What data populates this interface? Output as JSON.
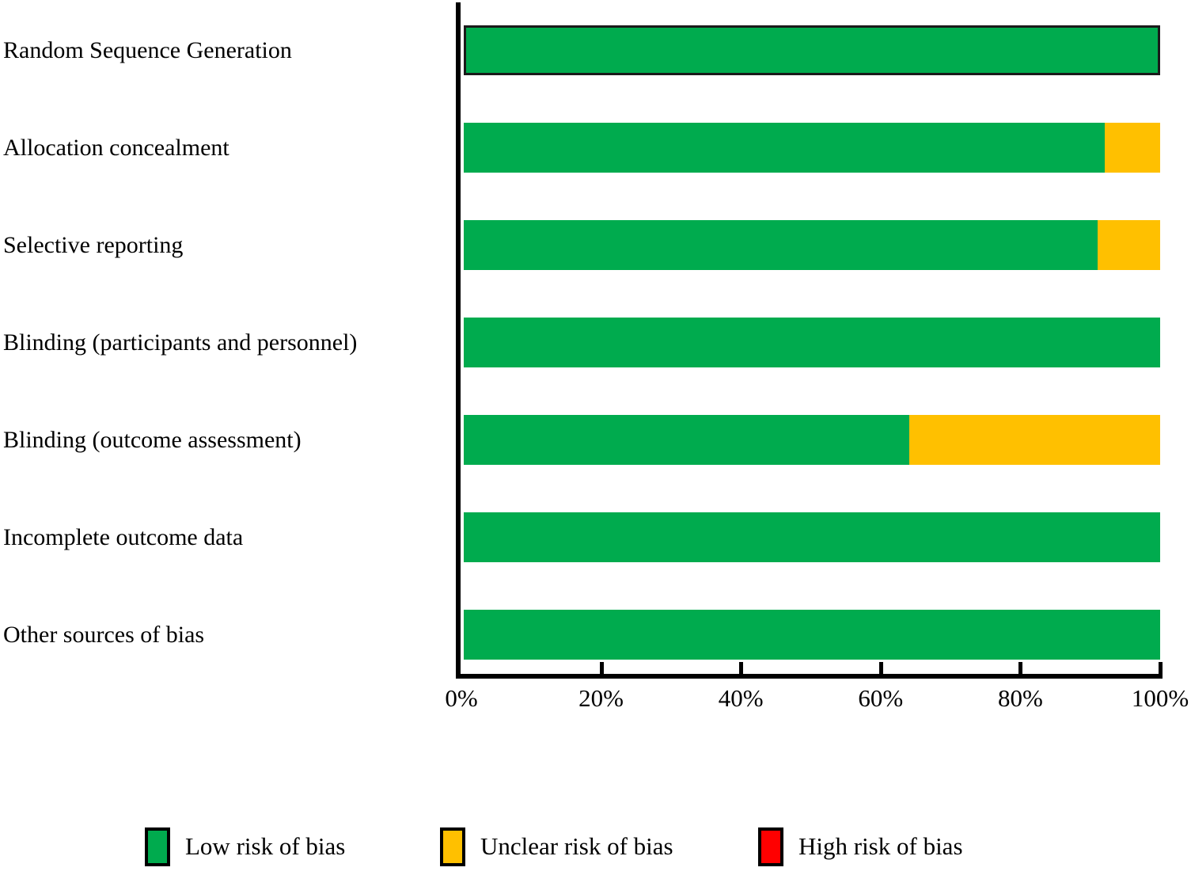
{
  "chart_data": {
    "type": "bar",
    "orientation": "horizontal",
    "stacked": true,
    "title": "",
    "xlabel": "",
    "ylabel": "",
    "grid": false,
    "categories": [
      "Random Sequence Generation",
      "Allocation concealment",
      "Selective reporting",
      "Blinding (participants and personnel)",
      "Blinding (outcome assessment)",
      "Incomplete outcome data",
      "Other sources of bias"
    ],
    "series": [
      {
        "name": "Low risk of bias",
        "color": "#00AB4E",
        "values": [
          100,
          92,
          91,
          100,
          64,
          100,
          100
        ]
      },
      {
        "name": "Unclear risk of bias",
        "color": "#FFC000",
        "values": [
          0,
          8,
          9,
          0,
          36,
          0,
          0
        ]
      },
      {
        "name": "High risk of bias",
        "color": "#FF0000",
        "values": [
          0,
          0,
          0,
          0,
          0,
          0,
          0
        ]
      }
    ],
    "x_axis": {
      "range": [
        0,
        100
      ],
      "unit": "percent",
      "tick_labels": [
        "0%",
        "20%",
        "40%",
        "60%",
        "80%",
        "100%"
      ]
    },
    "legend_position": "bottom",
    "legend": [
      {
        "label": "Low risk of bias",
        "color": "#00AB4E"
      },
      {
        "label": "Unclear risk of bias",
        "color": "#FFC000"
      },
      {
        "label": "High risk of bias",
        "color": "#FF0000"
      }
    ],
    "first_bar_outlined": true
  }
}
